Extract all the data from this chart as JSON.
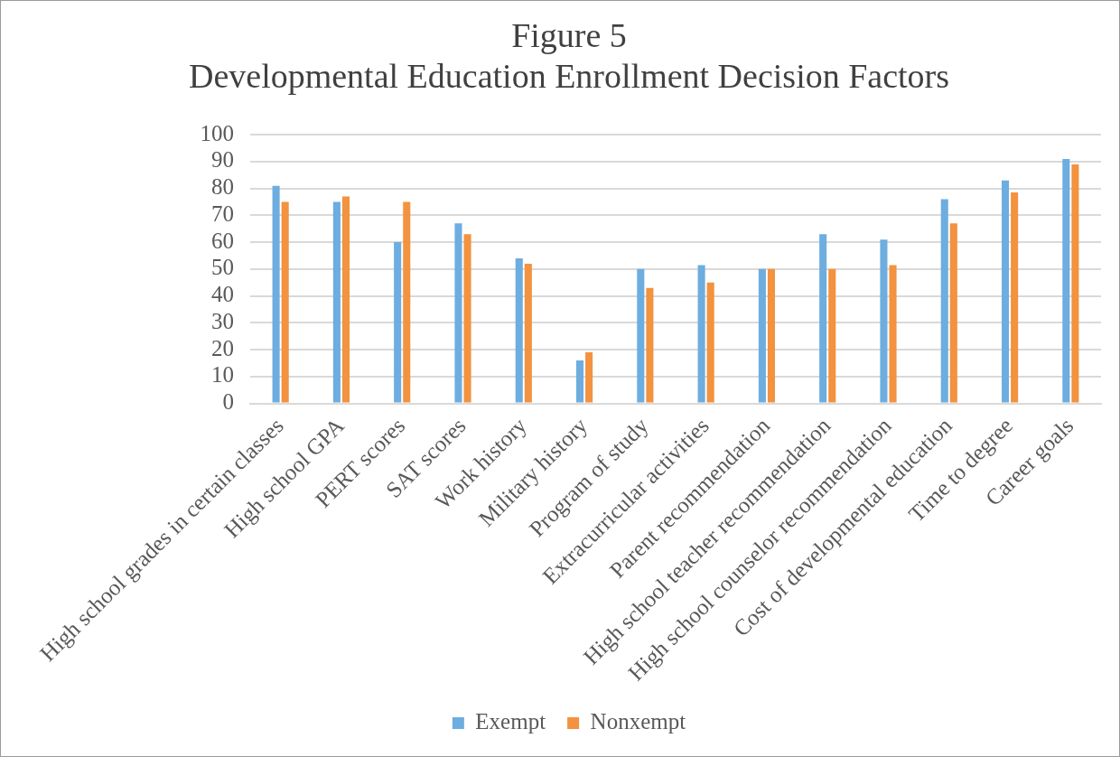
{
  "chart_data": {
    "type": "bar",
    "title": "Figure 5",
    "subtitle": "Developmental Education Enrollment Decision Factors",
    "categories": [
      "High school grades in certain classes",
      "High school GPA",
      "PERT scores",
      "SAT scores",
      "Work history",
      "Military history",
      "Program of study",
      "Extracurricular activities",
      "Parent recommendation",
      "High school teacher recommendation",
      "High school counselor recommendation",
      "Cost of developmental education",
      "Time to degree",
      "Career goals"
    ],
    "series": [
      {
        "name": "Exempt",
        "color": "#6daddf",
        "values": [
          81,
          75,
          60,
          67,
          54,
          16,
          50,
          51.5,
          50,
          63,
          61,
          76,
          83,
          91
        ]
      },
      {
        "name": "Nonxempt",
        "color": "#f3923f",
        "values": [
          75,
          77,
          75,
          63,
          52,
          19,
          43,
          45,
          50,
          50,
          51.5,
          67,
          78.5,
          89
        ]
      }
    ],
    "ylim": [
      0,
      100
    ],
    "yticks": [
      0,
      10,
      20,
      30,
      40,
      50,
      60,
      70,
      80,
      90,
      100
    ],
    "grid": "y",
    "legend": "bottom"
  }
}
